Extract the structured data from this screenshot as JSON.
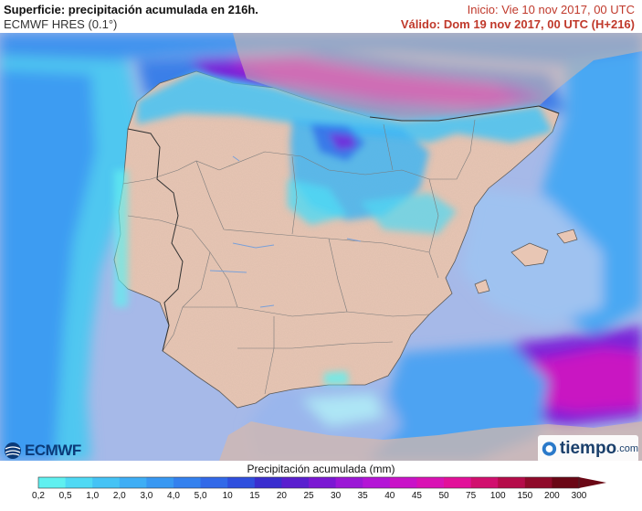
{
  "header": {
    "title": "Superficie: precipitación acumulada en 216h.",
    "model": "ECMWF HRES (0.1°)",
    "init": "Inicio: Vie 10 nov 2017, 00 UTC",
    "valid": "Válido: Dom 19 nov 2017, 00 UTC (H+216)"
  },
  "legend": {
    "title": "Precipitación acumulada (mm)",
    "ticks": [
      "0,2",
      "0,5",
      "1,0",
      "2,0",
      "3,0",
      "4,0",
      "5,0",
      "10",
      "15",
      "20",
      "25",
      "30",
      "35",
      "40",
      "45",
      "50",
      "75",
      "100",
      "150",
      "200",
      "300"
    ],
    "colors": [
      "#5ff0f0",
      "#4fd9f4",
      "#45c3f5",
      "#3eaef5",
      "#3898f2",
      "#3481ee",
      "#3269e8",
      "#2f4fde",
      "#3a2ecf",
      "#5a1fcf",
      "#7b18d3",
      "#9b17d6",
      "#b415d6",
      "#c913c8",
      "#d912b4",
      "#e2109a",
      "#d10f6e",
      "#b50c4a",
      "#8f0a2a",
      "#6a0715"
    ],
    "low_color": "#ffffff"
  },
  "colors": {
    "sea": "#a6b9e8",
    "land": "#e8c6b4",
    "border": "#8c8c8c"
  },
  "logos": {
    "ecmwf": "ECMWF",
    "tiempo": "tiempo",
    "tiempo_domain": ".com"
  }
}
